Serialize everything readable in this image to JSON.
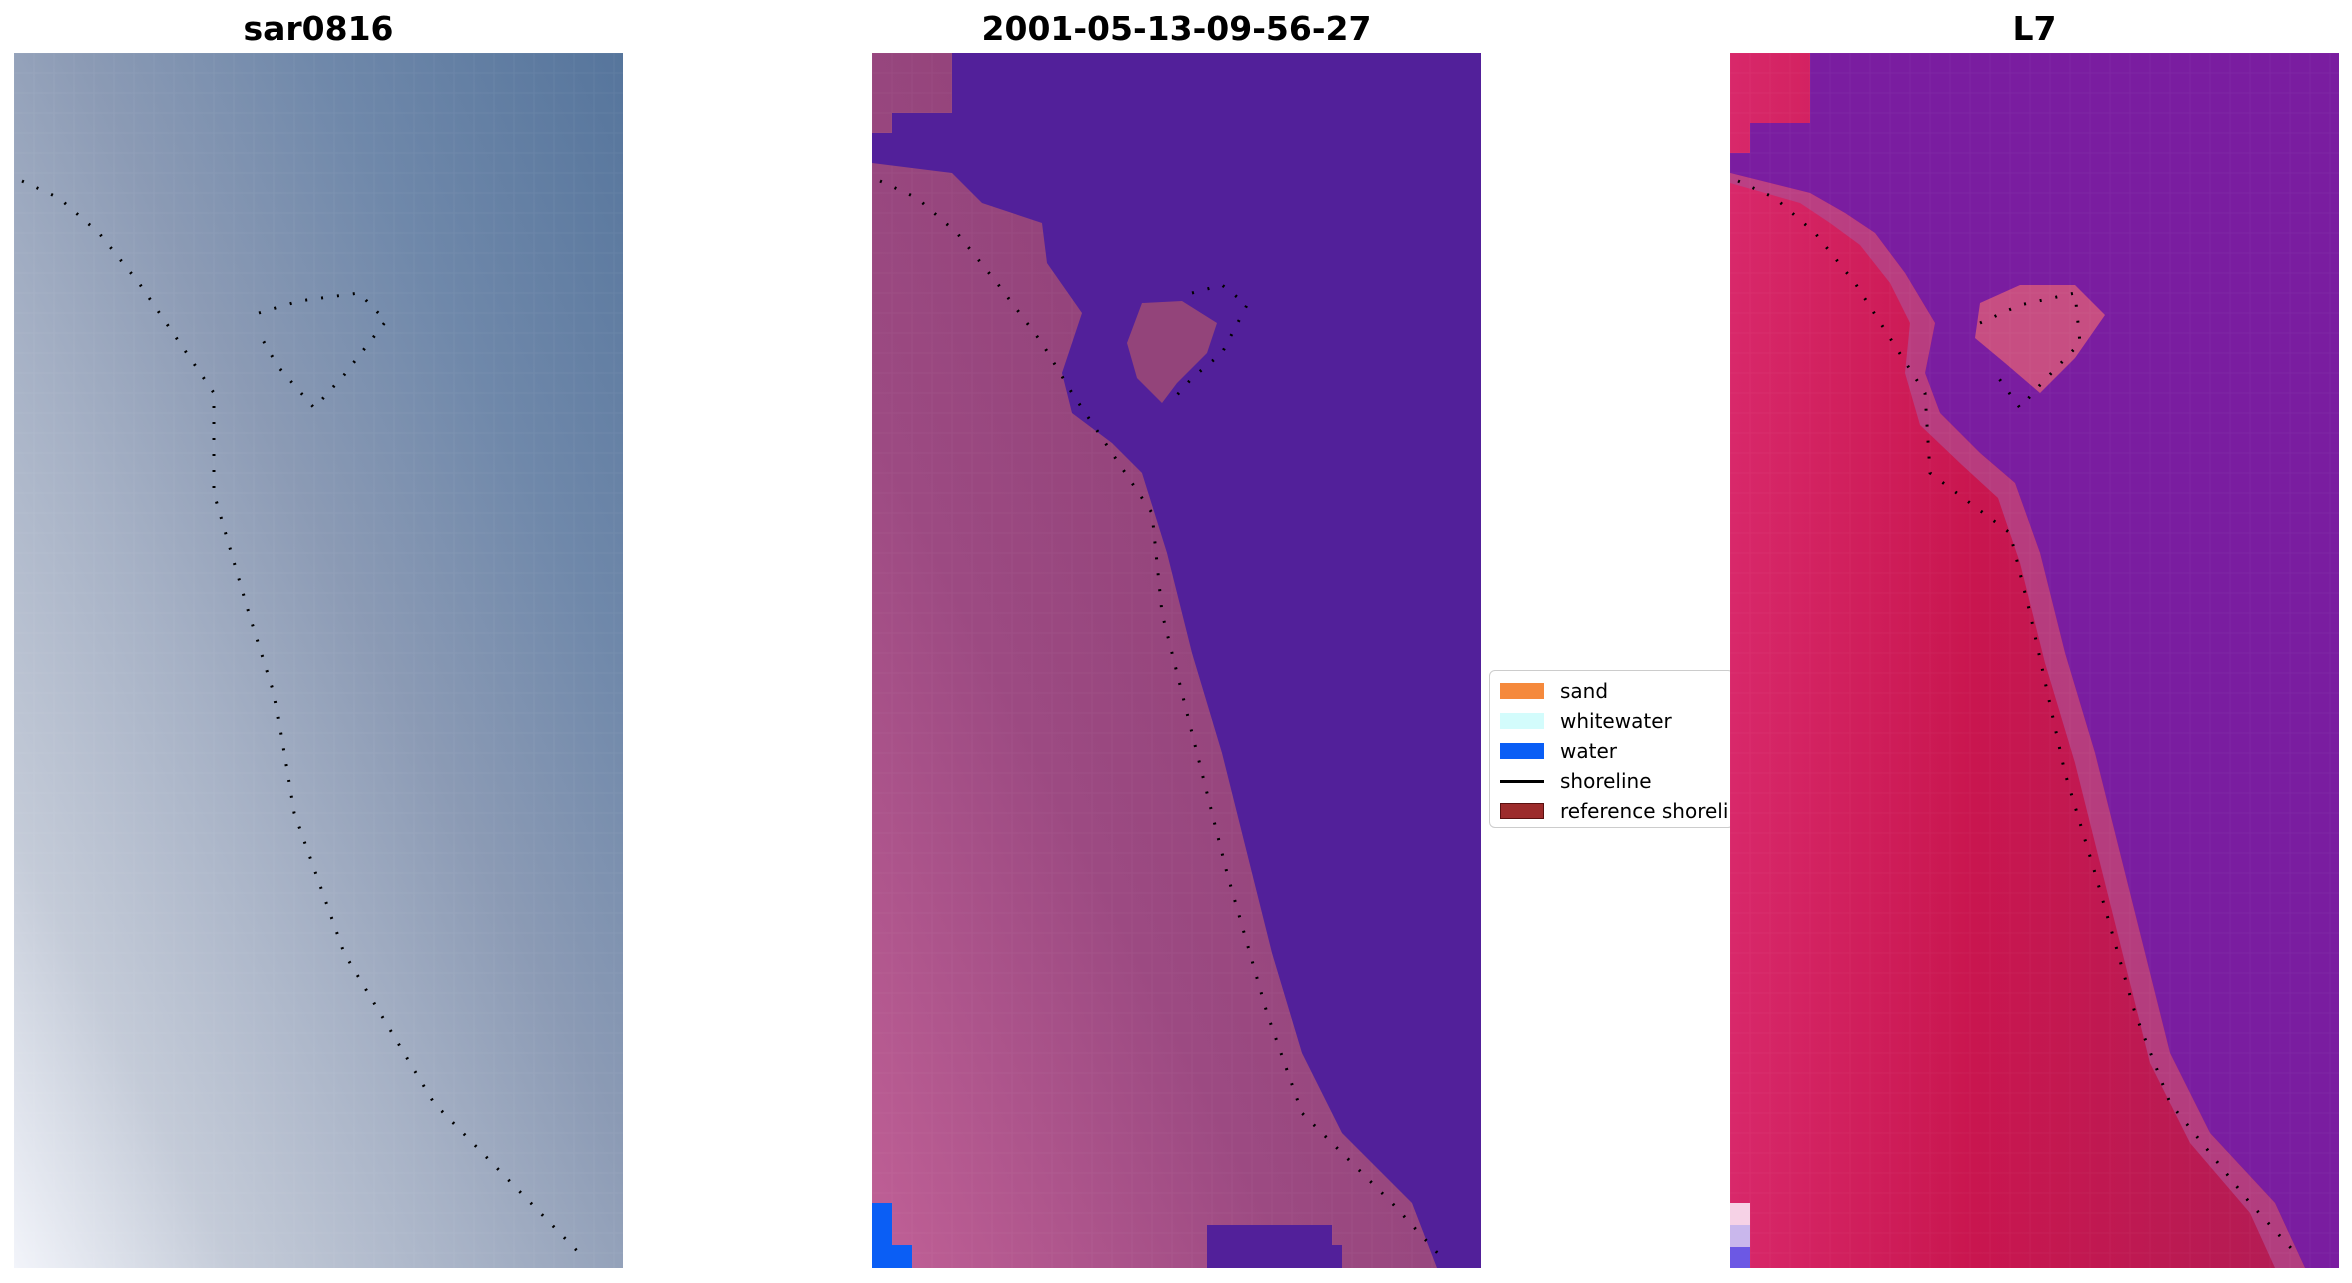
{
  "panels": [
    {
      "key": "sar",
      "title": "sar0816"
    },
    {
      "key": "classified",
      "title": "2001-05-13-09-56-27"
    },
    {
      "key": "sensor",
      "title": "L7"
    }
  ],
  "legend": {
    "items": [
      {
        "label": "sand",
        "color": "#f5893c",
        "kind": "patch"
      },
      {
        "label": "whitewater",
        "color": "#d3fcfc",
        "kind": "patch"
      },
      {
        "label": "water",
        "color": "#0a5ef5",
        "kind": "patch"
      },
      {
        "label": "shoreline",
        "color": "#000000",
        "kind": "line"
      },
      {
        "label": "reference shoreline",
        "color": "#9c2b2b",
        "kind": "patch"
      }
    ]
  },
  "colors": {
    "water_class": "#52209a",
    "land_class": "#93447a",
    "bright_water_pixels": "#0a5ef5",
    "sensor_land": "#c9164f",
    "sensor_water": "#7a1da0",
    "sar_water": "#5f7fa6",
    "sar_land": "#a5b2c5"
  }
}
